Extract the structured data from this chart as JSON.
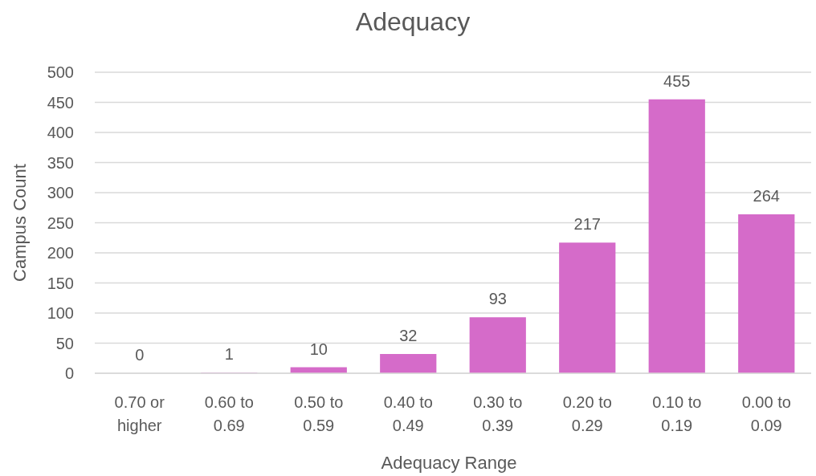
{
  "chart_data": {
    "type": "bar",
    "title": "Adequacy",
    "xlabel": "Adequacy Range",
    "ylabel": "Campus Count",
    "categories": [
      "0.70 or higher",
      "0.60 to 0.69",
      "0.50 to 0.59",
      "0.40 to 0.49",
      "0.30 to 0.39",
      "0.20 to 0.29",
      "0.10 to 0.19",
      "0.00 to 0.09"
    ],
    "values": [
      0,
      1,
      10,
      32,
      93,
      217,
      455,
      264
    ],
    "color": "#d56bc9",
    "ylim": [
      0,
      500
    ],
    "yticks": [
      0,
      50,
      100,
      150,
      200,
      250,
      300,
      350,
      400,
      450,
      500
    ],
    "grid": "y",
    "data_labels": true
  }
}
